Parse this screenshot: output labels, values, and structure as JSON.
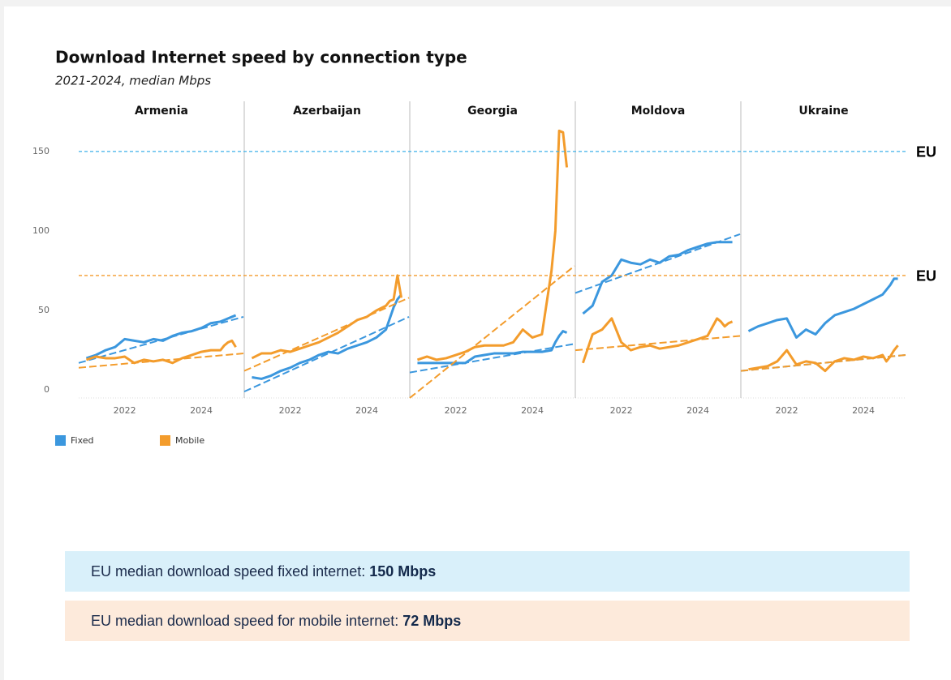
{
  "chart_data": {
    "type": "line",
    "title": "Download Internet speed by connection type",
    "subtitle": "2021-2024, median Mbps",
    "series": [
      {
        "name": "Fixed",
        "color": "#3b97de"
      },
      {
        "name": "Mobile",
        "color": "#f39c2c"
      }
    ],
    "x": [
      2021.0,
      2021.25,
      2021.5,
      2021.75,
      2022.0,
      2022.25,
      2022.5,
      2022.75,
      2023.0,
      2023.25,
      2023.5,
      2023.75,
      2024.0,
      2024.25,
      2024.5,
      2024.6,
      2024.7,
      2024.8,
      2024.9
    ],
    "xlim": [
      2020.8,
      2025.1
    ],
    "xticks": [
      2022,
      2024
    ],
    "ylim": [
      -5,
      180
    ],
    "yticks": [
      0,
      50,
      100,
      150
    ],
    "references": [
      {
        "value": 150,
        "label": "EU",
        "color": "#3db1e8"
      },
      {
        "value": 72,
        "label": "EU",
        "color": "#f39c2c"
      }
    ],
    "panels": [
      {
        "title": "Armenia",
        "values": [
          [
            20,
            22,
            25,
            27,
            32,
            31,
            30,
            32,
            31,
            34,
            36,
            37,
            39,
            42,
            43,
            44,
            45,
            46,
            47
          ],
          [
            19,
            21,
            20,
            20,
            21,
            17,
            19,
            18,
            19,
            17,
            20,
            22,
            24,
            25,
            25,
            28,
            30,
            31,
            27
          ]
        ],
        "trends": [
          [
            17,
            46
          ],
          [
            14,
            23
          ]
        ]
      },
      {
        "title": "Azerbaijan",
        "values": [
          [
            8,
            7,
            9,
            12,
            14,
            17,
            19,
            22,
            24,
            23,
            26,
            28,
            30,
            33,
            38,
            45,
            52,
            57,
            60
          ],
          [
            20,
            23,
            23,
            25,
            24,
            26,
            28,
            30,
            33,
            36,
            40,
            44,
            46,
            50,
            53,
            56,
            57,
            72,
            58
          ]
        ],
        "trends": [
          [
            -1,
            46
          ],
          [
            12,
            58
          ]
        ]
      },
      {
        "title": "Georgia",
        "values": [
          [
            17,
            17,
            17,
            17,
            17,
            17,
            21,
            22,
            23,
            23,
            23,
            24,
            24,
            24,
            25,
            30,
            34,
            37,
            36
          ],
          [
            19,
            21,
            19,
            20,
            22,
            24,
            27,
            28,
            28,
            28,
            30,
            38,
            33,
            35,
            75,
            100,
            163,
            162,
            140
          ]
        ],
        "trends": [
          [
            11,
            29
          ],
          [
            -5,
            78
          ]
        ]
      },
      {
        "title": "Moldova",
        "values": [
          [
            48,
            53,
            68,
            72,
            82,
            80,
            79,
            82,
            80,
            84,
            85,
            88,
            90,
            92,
            93,
            93,
            93,
            93,
            93
          ],
          [
            17,
            35,
            38,
            45,
            30,
            25,
            27,
            28,
            26,
            27,
            28,
            30,
            32,
            34,
            45,
            43,
            40,
            42,
            43
          ]
        ],
        "trends": [
          [
            61,
            98
          ],
          [
            25,
            34
          ]
        ]
      },
      {
        "title": "Ukraine",
        "values": [
          [
            37,
            40,
            42,
            44,
            45,
            33,
            38,
            35,
            42,
            47,
            49,
            51,
            54,
            57,
            60,
            63,
            66,
            70,
            70
          ],
          [
            13,
            14,
            15,
            18,
            25,
            16,
            18,
            17,
            12,
            18,
            20,
            19,
            21,
            20,
            22,
            18,
            21,
            25,
            28
          ]
        ],
        "trends": [
          [
            12,
            22
          ],
          [
            12,
            22
          ]
        ]
      }
    ]
  },
  "callouts": [
    {
      "text": "EU median download speed fixed internet: ",
      "strong": "150 Mbps"
    },
    {
      "text": "EU median download speed for mobile internet: ",
      "strong": "72 Mbps"
    }
  ]
}
